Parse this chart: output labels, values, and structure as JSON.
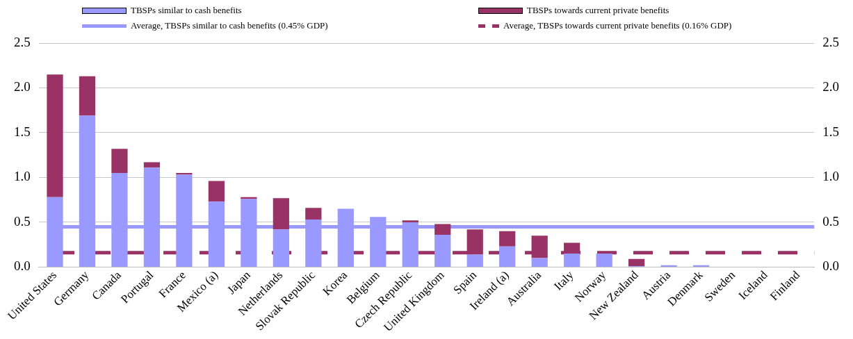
{
  "chart_data": {
    "type": "bar",
    "stacked": true,
    "legend": "top",
    "grid": "y",
    "categories": [
      "United States",
      "Germany",
      "Canada",
      "Portugal",
      "France",
      "Mexico (a)",
      "Japan",
      "Netherlands",
      "Slovak Republic",
      "Korea",
      "Belgium",
      "Czech Republic",
      "United Kingdom",
      "Spain",
      "Ireland (a)",
      "Australia",
      "Italy",
      "Norway",
      "New Zealand",
      "Austria",
      "Denmark",
      "Sweden",
      "Iceland",
      "Finland"
    ],
    "series": [
      {
        "name": "TBSPs similar to cash benefits",
        "color": "#9999ff",
        "values": [
          0.78,
          1.69,
          1.05,
          1.11,
          1.03,
          0.73,
          0.76,
          0.42,
          0.53,
          0.65,
          0.56,
          0.5,
          0.36,
          0.14,
          0.23,
          0.1,
          0.15,
          0.15,
          0.01,
          0.02,
          0.02,
          0,
          0,
          0
        ]
      },
      {
        "name": "TBSPs towards current private benefits",
        "color": "#993366",
        "values": [
          1.37,
          0.44,
          0.27,
          0.06,
          0.02,
          0.23,
          0.02,
          0.35,
          0.13,
          0,
          0,
          0.02,
          0.12,
          0.28,
          0.17,
          0.25,
          0.12,
          0,
          0.08,
          0,
          0,
          0,
          0,
          0
        ]
      }
    ],
    "ref_lines": [
      {
        "axis": "y",
        "value": 0.45,
        "label": "Average, TBSPs similar to cash benefits (0.45% GDP)",
        "color": "#9999ff",
        "line_style": "solid"
      },
      {
        "axis": "y",
        "value": 0.16,
        "label": "Average, TBSPs towards current private benefits (0.16% GDP)",
        "color": "#993366",
        "line_style": "dashed"
      }
    ],
    "ylim": [
      0,
      2.5
    ],
    "yticks": [
      {
        "value": 0,
        "label": "0.0"
      },
      {
        "value": 0.5,
        "label": "0.5"
      },
      {
        "value": 1,
        "label": "1.0"
      },
      {
        "value": 1.5,
        "label": "1.5"
      },
      {
        "value": 2,
        "label": "2.0"
      },
      {
        "value": 2.5,
        "label": "2.5"
      }
    ],
    "y2lim": [
      0,
      2.5
    ],
    "y2ticks": [
      {
        "value": 0,
        "label": "0.0"
      },
      {
        "value": 0.5,
        "label": "0.5"
      },
      {
        "value": 1,
        "label": "1.0"
      },
      {
        "value": 1.5,
        "label": "1.5"
      },
      {
        "value": 2,
        "label": "2.0"
      },
      {
        "value": 2.5,
        "label": "2.5"
      }
    ]
  }
}
